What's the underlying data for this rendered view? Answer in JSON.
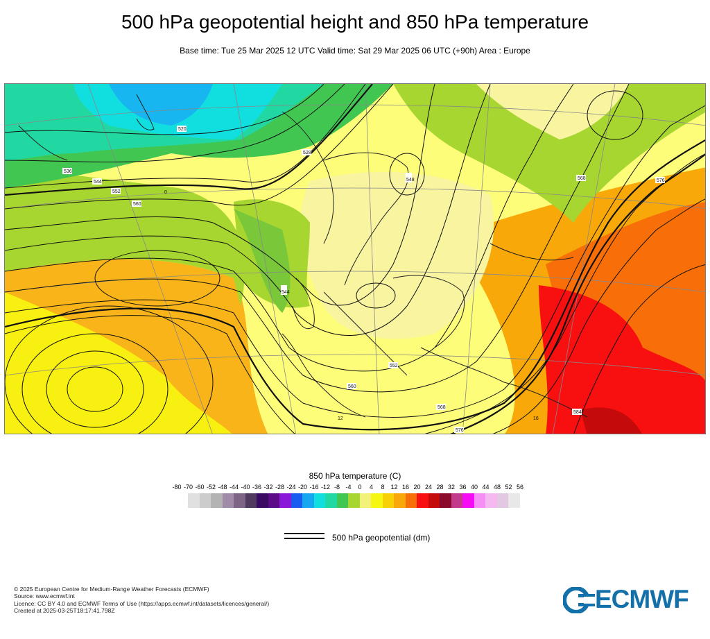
{
  "header": {
    "title": "500 hPa geopotential height and 850 hPa temperature",
    "subtitle": "Base time: Tue 25 Mar 2025 12 UTC Valid time: Sat 29 Mar 2025 06 UTC (+90h) Area : Europe"
  },
  "colorbar": {
    "title": "850 hPa temperature (C)",
    "labels": [
      "-80",
      "-70",
      "-60",
      "-52",
      "-48",
      "-44",
      "-40",
      "-36",
      "-32",
      "-28",
      "-24",
      "-20",
      "-16",
      "-12",
      "-8",
      "-4",
      "0",
      "4",
      "8",
      "12",
      "16",
      "20",
      "24",
      "28",
      "32",
      "36",
      "40",
      "44",
      "48",
      "52",
      "56"
    ],
    "colors": [
      "#e0e0e0",
      "#cccccc",
      "#b3b3b3",
      "#a08ca8",
      "#7e6588",
      "#4e3b5e",
      "#3b0a62",
      "#5b0a88",
      "#8a18d8",
      "#1a5cf0",
      "#17a6f0",
      "#11dede",
      "#21d8a2",
      "#42c652",
      "#a8d630",
      "#f2f27a",
      "#f6f610",
      "#f8d008",
      "#f8a808",
      "#f86e08",
      "#f81010",
      "#c40a0a",
      "#8a0a2c",
      "#c43a8a",
      "#f50cf5",
      "#f58ef5",
      "#f5b8f0",
      "#e2c8e2",
      "#e8e8e8"
    ]
  },
  "legend": {
    "label": "500 hPa geopotential (dm)"
  },
  "map": {
    "contour_labels": [
      "520",
      "528",
      "536",
      "544",
      "552",
      "560",
      "568",
      "576",
      "584"
    ],
    "label_520": "520",
    "label_528": "528",
    "label_536": "536",
    "label_544": "544",
    "label_552": "552",
    "label_560": "560",
    "label_568": "568",
    "label_576": "576",
    "label_584": "584",
    "label_548": "548",
    "label_12": "12",
    "label_16": "16",
    "label_0": "0"
  },
  "footer": {
    "line1": "© 2025 European Centre for Medium-Range Weather Forecasts (ECMWF)",
    "line2": "Source: www.ecmwf.int",
    "line3": "Licence: CC BY 4.0 and ECMWF Terms of Use (https://apps.ecmwf.int/datasets/licences/general/)",
    "line4": "Created at 2025-03-25T18:17:41.798Z"
  },
  "logo": {
    "text": "ECMWF",
    "color": "#1470a8"
  }
}
